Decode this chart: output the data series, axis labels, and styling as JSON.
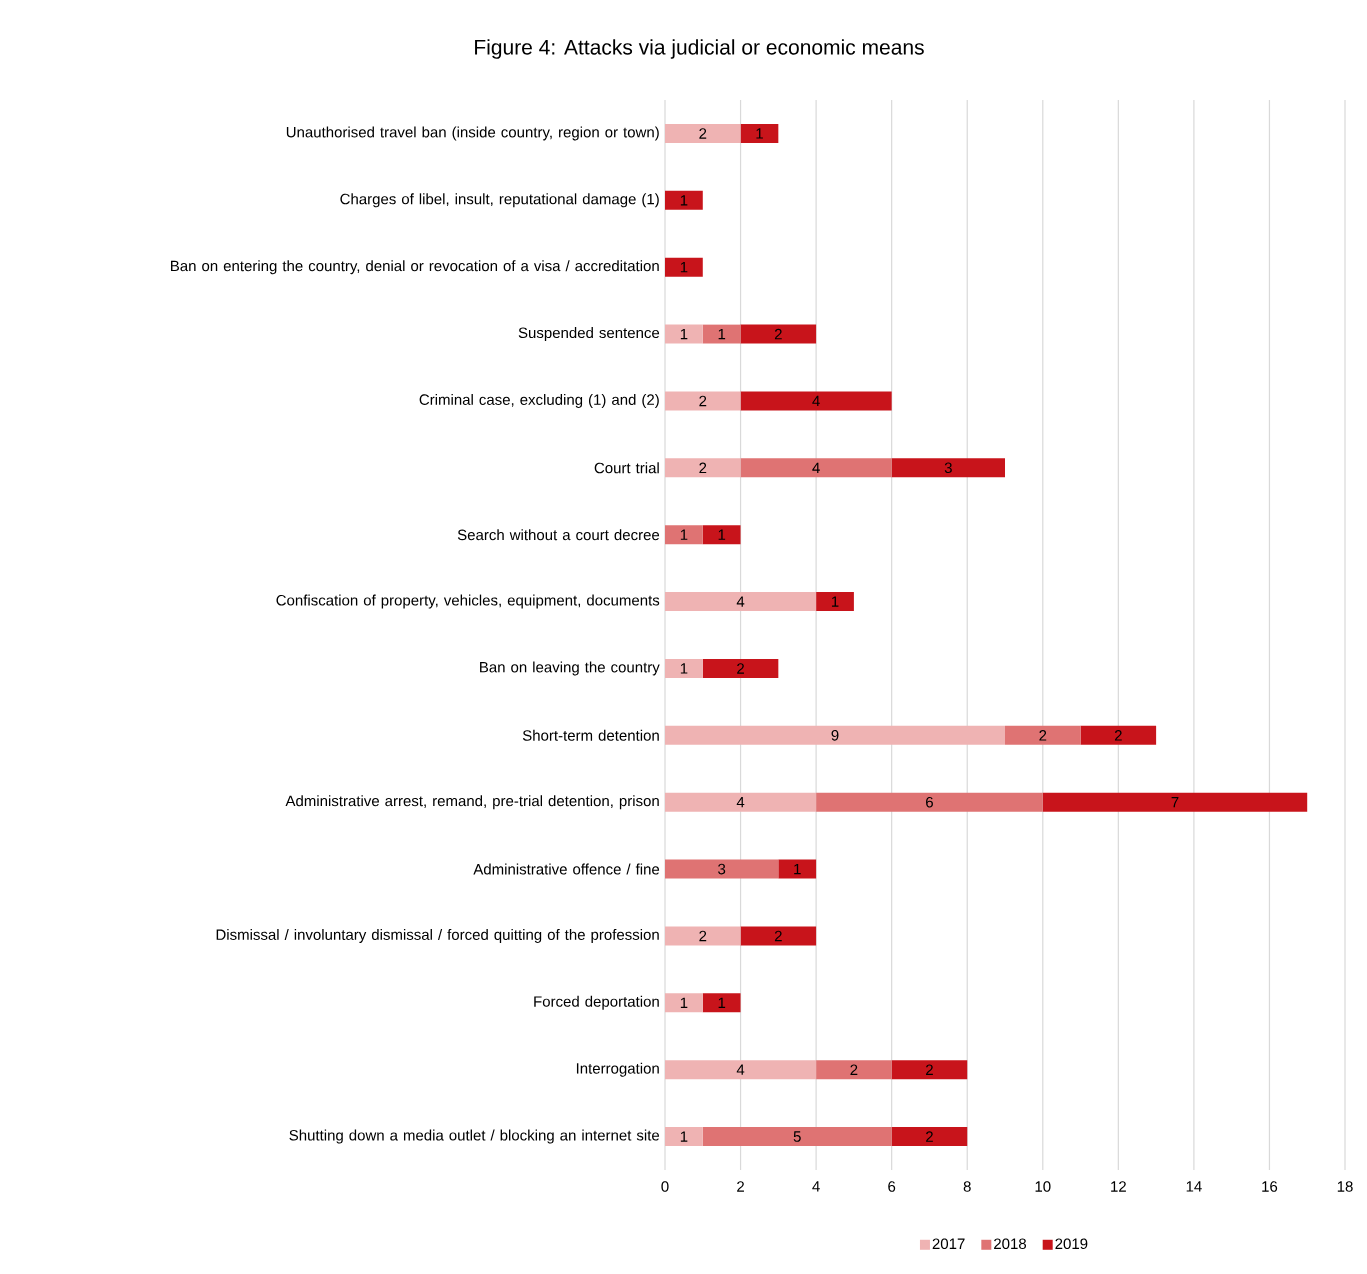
{
  "chart_data": {
    "type": "bar",
    "orientation": "horizontal",
    "stacked": true,
    "title": "Figure 4: Attacks via judicial or economic means",
    "categories": [
      "Unauthorised travel ban (inside country, region or town)",
      "Charges of libel, insult, reputational damage (1)",
      "Ban on entering the country, denial or revocation of a visa / accreditation",
      "Suspended sentence",
      "Criminal case, excluding (1) and (2)",
      "Court trial",
      "Search without a court decree",
      "Confiscation of property, vehicles, equipment, documents",
      "Ban on leaving the country",
      "Short-term detention",
      "Administrative arrest, remand, pre-trial detention, prison",
      "Administrative offence / fine",
      "Dismissal / involuntary dismissal / forced quitting of the profession",
      "Forced deportation",
      "Interrogation",
      "Shutting down a media outlet / blocking an internet site"
    ],
    "series": [
      {
        "name": "2017",
        "color": "#efb3b3",
        "values": [
          2,
          null,
          null,
          1,
          2,
          2,
          null,
          4,
          1,
          9,
          4,
          null,
          2,
          1,
          4,
          1
        ]
      },
      {
        "name": "2018",
        "color": "#df7373",
        "values": [
          null,
          null,
          null,
          1,
          null,
          4,
          1,
          null,
          null,
          2,
          6,
          3,
          null,
          null,
          2,
          5
        ]
      },
      {
        "name": "2019",
        "color": "#c8141b",
        "values": [
          1,
          1,
          1,
          2,
          4,
          3,
          1,
          1,
          2,
          2,
          7,
          1,
          2,
          1,
          2,
          2
        ]
      }
    ],
    "xlim": [
      0,
      18
    ],
    "xticks": [
      0,
      2,
      4,
      6,
      8,
      10,
      12,
      14,
      16,
      18
    ],
    "grid": "x",
    "legend": "bottom",
    "data_labels": true
  }
}
